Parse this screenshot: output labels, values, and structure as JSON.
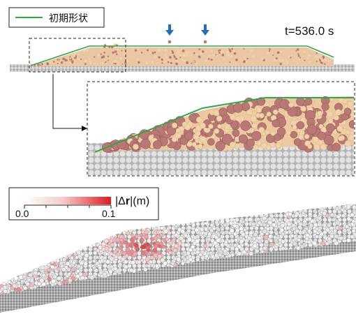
{
  "legend": {
    "label": "初期形状",
    "line_color": "#2aa84a"
  },
  "time_label": "t=536.0 s",
  "markers": {
    "icon": "down-arrow-icon",
    "color": "#1f6fbf",
    "count": 2
  },
  "colorbar": {
    "label_prefix": "|Δ",
    "label_bold": "r",
    "label_suffix": "|(m)",
    "min_label": "0.0",
    "max_label": "0.1",
    "min_color": "#ffffff",
    "max_color": "#e0191f"
  },
  "colors": {
    "particle_light": "#f2d2a9",
    "particle_dark": "#b97874",
    "base_particle": "#cfcfcf",
    "initial_shape_line": "#2aa84a"
  }
}
